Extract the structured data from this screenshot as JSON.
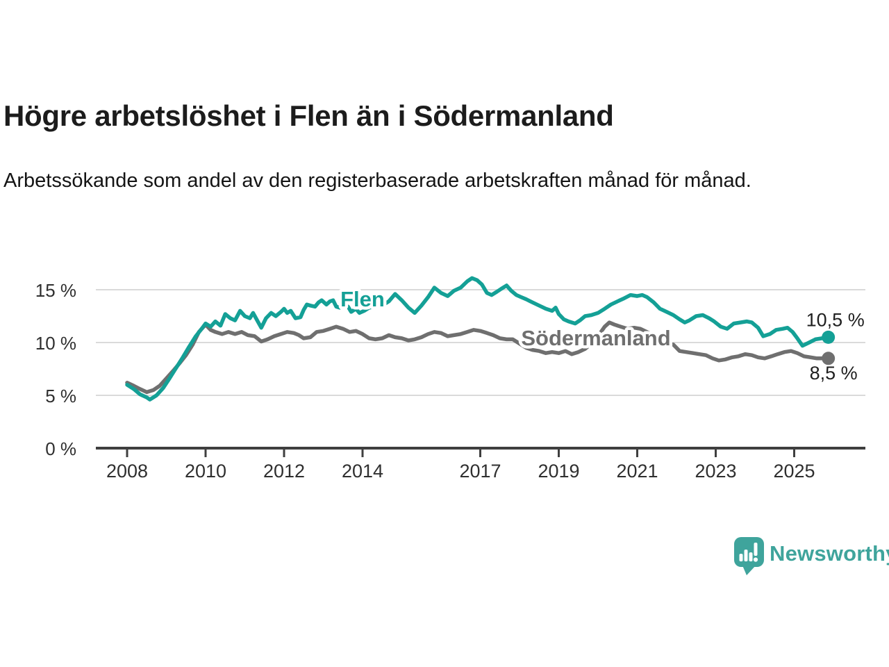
{
  "header": {
    "title": "Högre arbetslöshet i Flen än i Södermanland",
    "subtitle": "Arbetssökande som andel av den registerbaserade arbetskraften månad för månad."
  },
  "chart_data": {
    "type": "line",
    "title": "Högre arbetslöshet i Flen än i Södermanland",
    "subtitle": "Arbetssökande som andel av den registerbaserade arbetskraften månad för månad.",
    "xlabel": "",
    "ylabel": "",
    "grid": true,
    "legend_position": "inline-labels",
    "ylim": [
      0,
      16.5
    ],
    "xlim": [
      2007.6,
      2026.8
    ],
    "yticks": [
      {
        "value": 0,
        "label": "0 %"
      },
      {
        "value": 5,
        "label": "5 %"
      },
      {
        "value": 10,
        "label": "10 %"
      },
      {
        "value": 15,
        "label": "15 %"
      }
    ],
    "xticks": [
      {
        "value": 2008,
        "label": "2008"
      },
      {
        "value": 2010,
        "label": "2010"
      },
      {
        "value": 2012,
        "label": "2012"
      },
      {
        "value": 2014,
        "label": "2014"
      },
      {
        "value": 2017,
        "label": "2017"
      },
      {
        "value": 2019,
        "label": "2019"
      },
      {
        "value": 2021,
        "label": "2021"
      },
      {
        "value": 2023,
        "label": "2023"
      },
      {
        "value": 2025,
        "label": "2025"
      }
    ],
    "series": [
      {
        "name": "Flen",
        "color": "#14A096",
        "end_label": "10,5 %",
        "end_value": 10.5,
        "points": [
          [
            2008.0,
            6.0
          ],
          [
            2008.17,
            5.6
          ],
          [
            2008.33,
            5.1
          ],
          [
            2008.5,
            4.8
          ],
          [
            2008.58,
            4.6
          ],
          [
            2008.75,
            5.0
          ],
          [
            2008.92,
            5.7
          ],
          [
            2009.08,
            6.6
          ],
          [
            2009.25,
            7.6
          ],
          [
            2009.42,
            8.6
          ],
          [
            2009.58,
            9.6
          ],
          [
            2009.75,
            10.6
          ],
          [
            2009.92,
            11.4
          ],
          [
            2010.0,
            11.8
          ],
          [
            2010.13,
            11.5
          ],
          [
            2010.25,
            12.0
          ],
          [
            2010.38,
            11.6
          ],
          [
            2010.5,
            12.7
          ],
          [
            2010.63,
            12.3
          ],
          [
            2010.75,
            12.1
          ],
          [
            2010.88,
            13.0
          ],
          [
            2011.0,
            12.5
          ],
          [
            2011.13,
            12.3
          ],
          [
            2011.21,
            12.8
          ],
          [
            2011.33,
            12.0
          ],
          [
            2011.42,
            11.4
          ],
          [
            2011.54,
            12.3
          ],
          [
            2011.67,
            12.8
          ],
          [
            2011.79,
            12.5
          ],
          [
            2011.92,
            12.9
          ],
          [
            2012.0,
            13.2
          ],
          [
            2012.08,
            12.8
          ],
          [
            2012.17,
            13.0
          ],
          [
            2012.29,
            12.3
          ],
          [
            2012.42,
            12.4
          ],
          [
            2012.5,
            13.1
          ],
          [
            2012.58,
            13.6
          ],
          [
            2012.67,
            13.5
          ],
          [
            2012.79,
            13.4
          ],
          [
            2012.88,
            13.8
          ],
          [
            2012.96,
            14.0
          ],
          [
            2013.08,
            13.6
          ],
          [
            2013.17,
            13.9
          ],
          [
            2013.25,
            14.0
          ],
          [
            2013.33,
            13.4
          ],
          [
            2013.42,
            13.3
          ],
          [
            2013.5,
            13.6
          ],
          [
            2013.63,
            13.4
          ],
          [
            2013.71,
            12.9
          ],
          [
            2013.83,
            13.2
          ],
          [
            2013.92,
            12.8
          ],
          [
            2014.04,
            13.0
          ],
          [
            2014.17,
            13.3
          ],
          [
            2014.33,
            13.4
          ],
          [
            2014.5,
            13.5
          ],
          [
            2014.67,
            13.9
          ],
          [
            2014.83,
            14.6
          ],
          [
            2015.0,
            14.0
          ],
          [
            2015.17,
            13.3
          ],
          [
            2015.33,
            12.8
          ],
          [
            2015.5,
            13.5
          ],
          [
            2015.67,
            14.3
          ],
          [
            2015.83,
            15.2
          ],
          [
            2016.0,
            14.7
          ],
          [
            2016.17,
            14.4
          ],
          [
            2016.33,
            14.9
          ],
          [
            2016.5,
            15.2
          ],
          [
            2016.67,
            15.8
          ],
          [
            2016.79,
            16.1
          ],
          [
            2016.92,
            15.9
          ],
          [
            2017.04,
            15.5
          ],
          [
            2017.17,
            14.7
          ],
          [
            2017.29,
            14.5
          ],
          [
            2017.42,
            14.8
          ],
          [
            2017.54,
            15.1
          ],
          [
            2017.67,
            15.4
          ],
          [
            2017.79,
            14.9
          ],
          [
            2017.92,
            14.5
          ],
          [
            2018.04,
            14.3
          ],
          [
            2018.17,
            14.1
          ],
          [
            2018.33,
            13.8
          ],
          [
            2018.5,
            13.5
          ],
          [
            2018.67,
            13.2
          ],
          [
            2018.83,
            13.0
          ],
          [
            2018.92,
            13.3
          ],
          [
            2019.0,
            12.7
          ],
          [
            2019.13,
            12.2
          ],
          [
            2019.25,
            12.0
          ],
          [
            2019.42,
            11.8
          ],
          [
            2019.54,
            12.1
          ],
          [
            2019.67,
            12.5
          ],
          [
            2019.83,
            12.6
          ],
          [
            2020.0,
            12.8
          ],
          [
            2020.17,
            13.2
          ],
          [
            2020.33,
            13.6
          ],
          [
            2020.5,
            13.9
          ],
          [
            2020.67,
            14.2
          ],
          [
            2020.83,
            14.5
          ],
          [
            2021.0,
            14.4
          ],
          [
            2021.13,
            14.5
          ],
          [
            2021.25,
            14.3
          ],
          [
            2021.42,
            13.8
          ],
          [
            2021.58,
            13.2
          ],
          [
            2021.75,
            12.9
          ],
          [
            2021.92,
            12.6
          ],
          [
            2022.08,
            12.2
          ],
          [
            2022.21,
            11.9
          ],
          [
            2022.33,
            12.1
          ],
          [
            2022.5,
            12.5
          ],
          [
            2022.67,
            12.6
          ],
          [
            2022.83,
            12.3
          ],
          [
            2022.96,
            12.0
          ],
          [
            2023.13,
            11.5
          ],
          [
            2023.29,
            11.3
          ],
          [
            2023.46,
            11.8
          ],
          [
            2023.63,
            11.9
          ],
          [
            2023.79,
            12.0
          ],
          [
            2023.92,
            11.9
          ],
          [
            2024.08,
            11.4
          ],
          [
            2024.21,
            10.6
          ],
          [
            2024.38,
            10.8
          ],
          [
            2024.54,
            11.2
          ],
          [
            2024.71,
            11.3
          ],
          [
            2024.83,
            11.4
          ],
          [
            2024.96,
            11.0
          ],
          [
            2025.08,
            10.4
          ],
          [
            2025.21,
            9.7
          ],
          [
            2025.38,
            10.0
          ],
          [
            2025.54,
            10.3
          ],
          [
            2025.71,
            10.4
          ],
          [
            2025.87,
            10.5
          ]
        ]
      },
      {
        "name": "Södermanland",
        "color": "#6F6F6F",
        "end_label": "8,5 %",
        "end_value": 8.5,
        "points": [
          [
            2008.0,
            6.2
          ],
          [
            2008.17,
            5.9
          ],
          [
            2008.33,
            5.6
          ],
          [
            2008.5,
            5.3
          ],
          [
            2008.67,
            5.5
          ],
          [
            2008.83,
            5.9
          ],
          [
            2009.0,
            6.6
          ],
          [
            2009.17,
            7.3
          ],
          [
            2009.33,
            8.0
          ],
          [
            2009.5,
            8.8
          ],
          [
            2009.67,
            9.8
          ],
          [
            2009.83,
            11.0
          ],
          [
            2010.0,
            11.7
          ],
          [
            2010.13,
            11.2
          ],
          [
            2010.25,
            11.0
          ],
          [
            2010.42,
            10.8
          ],
          [
            2010.58,
            11.0
          ],
          [
            2010.75,
            10.8
          ],
          [
            2010.92,
            11.0
          ],
          [
            2011.08,
            10.7
          ],
          [
            2011.25,
            10.6
          ],
          [
            2011.42,
            10.1
          ],
          [
            2011.58,
            10.3
          ],
          [
            2011.75,
            10.6
          ],
          [
            2011.92,
            10.8
          ],
          [
            2012.08,
            11.0
          ],
          [
            2012.25,
            10.9
          ],
          [
            2012.38,
            10.7
          ],
          [
            2012.5,
            10.4
          ],
          [
            2012.67,
            10.5
          ],
          [
            2012.83,
            11.0
          ],
          [
            2013.0,
            11.1
          ],
          [
            2013.17,
            11.3
          ],
          [
            2013.33,
            11.5
          ],
          [
            2013.5,
            11.3
          ],
          [
            2013.67,
            11.0
          ],
          [
            2013.83,
            11.1
          ],
          [
            2014.0,
            10.8
          ],
          [
            2014.17,
            10.4
          ],
          [
            2014.33,
            10.3
          ],
          [
            2014.5,
            10.4
          ],
          [
            2014.67,
            10.7
          ],
          [
            2014.83,
            10.5
          ],
          [
            2015.0,
            10.4
          ],
          [
            2015.17,
            10.2
          ],
          [
            2015.33,
            10.3
          ],
          [
            2015.5,
            10.5
          ],
          [
            2015.67,
            10.8
          ],
          [
            2015.83,
            11.0
          ],
          [
            2016.0,
            10.9
          ],
          [
            2016.17,
            10.6
          ],
          [
            2016.33,
            10.7
          ],
          [
            2016.5,
            10.8
          ],
          [
            2016.67,
            11.0
          ],
          [
            2016.83,
            11.2
          ],
          [
            2017.0,
            11.1
          ],
          [
            2017.17,
            10.9
          ],
          [
            2017.33,
            10.7
          ],
          [
            2017.5,
            10.4
          ],
          [
            2017.67,
            10.3
          ],
          [
            2017.83,
            10.3
          ],
          [
            2018.0,
            9.9
          ],
          [
            2018.17,
            9.5
          ],
          [
            2018.33,
            9.3
          ],
          [
            2018.5,
            9.2
          ],
          [
            2018.67,
            9.0
          ],
          [
            2018.83,
            9.1
          ],
          [
            2019.0,
            9.0
          ],
          [
            2019.17,
            9.2
          ],
          [
            2019.33,
            8.9
          ],
          [
            2019.5,
            9.1
          ],
          [
            2019.67,
            9.4
          ],
          [
            2019.83,
            9.9
          ],
          [
            2020.0,
            10.6
          ],
          [
            2020.17,
            11.5
          ],
          [
            2020.29,
            11.9
          ],
          [
            2020.42,
            11.7
          ],
          [
            2020.58,
            11.5
          ],
          [
            2020.75,
            11.3
          ],
          [
            2020.92,
            11.4
          ],
          [
            2021.08,
            11.3
          ],
          [
            2021.25,
            11.0
          ],
          [
            2021.42,
            10.7
          ],
          [
            2021.58,
            10.2
          ],
          [
            2021.75,
            9.9
          ],
          [
            2021.92,
            9.8
          ],
          [
            2022.08,
            9.2
          ],
          [
            2022.25,
            9.1
          ],
          [
            2022.42,
            9.0
          ],
          [
            2022.58,
            8.9
          ],
          [
            2022.75,
            8.8
          ],
          [
            2022.92,
            8.5
          ],
          [
            2023.08,
            8.3
          ],
          [
            2023.25,
            8.4
          ],
          [
            2023.42,
            8.6
          ],
          [
            2023.58,
            8.7
          ],
          [
            2023.75,
            8.9
          ],
          [
            2023.92,
            8.8
          ],
          [
            2024.08,
            8.6
          ],
          [
            2024.25,
            8.5
          ],
          [
            2024.42,
            8.7
          ],
          [
            2024.58,
            8.9
          ],
          [
            2024.75,
            9.1
          ],
          [
            2024.92,
            9.2
          ],
          [
            2025.08,
            9.0
          ],
          [
            2025.25,
            8.7
          ],
          [
            2025.42,
            8.6
          ],
          [
            2025.58,
            8.5
          ],
          [
            2025.87,
            8.5
          ]
        ]
      }
    ]
  },
  "footer": {
    "brand": "Newsworthy",
    "brand_color": "#3FA49C"
  }
}
